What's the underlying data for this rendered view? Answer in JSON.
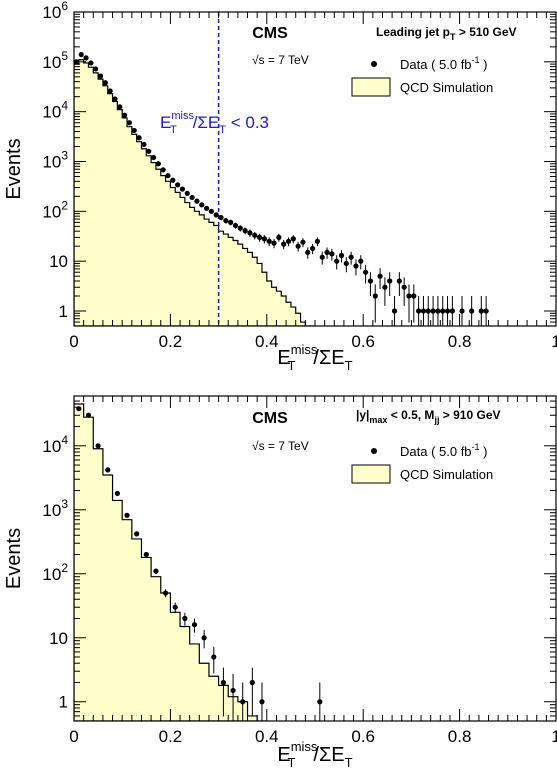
{
  "chart_data": [
    {
      "type": "histogram",
      "panel": "top",
      "experiment": "CMS",
      "energy": {
        "pre": "√s",
        "post": " = 7 TeV"
      },
      "selection": {
        "parts": [
          "Leading jet p",
          "T",
          " > 510 GeV"
        ]
      },
      "xlabel": {
        "E": "E",
        "T": "T",
        "miss": "miss",
        "slash": "/ΣE",
        "T2": "T"
      },
      "ylabel": "Events",
      "xlim": [
        0,
        1
      ],
      "ylim": [
        0.5,
        1000000
      ],
      "ylog": true,
      "xticks": [
        "0",
        "0.2",
        "0.4",
        "0.6",
        "0.8",
        "1"
      ],
      "yticks": [
        {
          "value": 1,
          "label": "1",
          "exp": ""
        },
        {
          "value": 10,
          "label": "10",
          "exp": ""
        },
        {
          "value": 100,
          "label": "10",
          "exp": "2"
        },
        {
          "value": 1000,
          "label": "10",
          "exp": "3"
        },
        {
          "value": 10000,
          "label": "10",
          "exp": "4"
        },
        {
          "value": 100000,
          "label": "10",
          "exp": "5"
        },
        {
          "value": 1000000,
          "label": "10",
          "exp": "6"
        }
      ],
      "cut": {
        "x": 0.3,
        "label": {
          "E": "E",
          "T": "T",
          "miss": "miss",
          "rest": "/ΣE",
          "T2": "T",
          "cond": " < 0.3"
        }
      },
      "legend": {
        "data": {
          "pre": "Data ( 5.0 fb",
          "sup": "-1",
          "post": " )"
        },
        "mc": "QCD Simulation"
      },
      "colors": {
        "mc_fill": "#ffffcc",
        "cut": "#1a1acc",
        "points": "#000000"
      },
      "series": [
        {
          "name": "QCD Simulation",
          "bin_width": 0.01,
          "x_start": 0.0,
          "values": [
            90000,
            110000,
            95000,
            78000,
            60000,
            45000,
            33000,
            23000,
            16000,
            11000,
            7500,
            5000,
            3500,
            2500,
            1800,
            1300,
            950,
            700,
            520,
            400,
            300,
            240,
            190,
            150,
            120,
            100,
            85,
            70,
            60,
            52,
            40,
            35,
            30,
            26,
            22,
            18,
            15,
            12,
            9,
            6,
            4,
            3,
            2.5,
            2,
            1.5,
            1.2,
            0.9,
            0.6,
            0.5,
            0.5
          ]
        },
        {
          "name": "Data",
          "x": [
            0.005,
            0.015,
            0.025,
            0.035,
            0.045,
            0.055,
            0.065,
            0.075,
            0.085,
            0.095,
            0.105,
            0.115,
            0.125,
            0.135,
            0.145,
            0.155,
            0.165,
            0.175,
            0.185,
            0.195,
            0.205,
            0.215,
            0.225,
            0.235,
            0.245,
            0.255,
            0.265,
            0.275,
            0.285,
            0.295,
            0.305,
            0.315,
            0.325,
            0.335,
            0.345,
            0.355,
            0.365,
            0.375,
            0.385,
            0.395,
            0.405,
            0.415,
            0.425,
            0.435,
            0.445,
            0.455,
            0.465,
            0.475,
            0.485,
            0.495,
            0.505,
            0.515,
            0.525,
            0.535,
            0.545,
            0.555,
            0.565,
            0.575,
            0.585,
            0.595,
            0.605,
            0.615,
            0.625,
            0.635,
            0.645,
            0.655,
            0.665,
            0.675,
            0.685,
            0.695,
            0.705,
            0.715,
            0.725,
            0.735,
            0.745,
            0.755,
            0.765,
            0.775,
            0.785,
            0.805,
            0.825,
            0.845,
            0.855
          ],
          "values": [
            100000,
            140000,
            120000,
            95000,
            72000,
            52000,
            38000,
            26000,
            18000,
            12500,
            8500,
            6000,
            4200,
            3000,
            2200,
            1600,
            1200,
            900,
            680,
            520,
            420,
            340,
            280,
            230,
            190,
            160,
            135,
            115,
            100,
            85,
            75,
            65,
            60,
            52,
            46,
            41,
            37,
            33,
            30,
            28,
            25,
            23,
            30,
            22,
            25,
            28,
            20,
            24,
            15,
            18,
            25,
            12,
            15,
            14,
            10,
            13,
            9,
            12,
            8,
            10,
            6,
            4,
            2,
            5,
            3,
            4,
            1,
            4,
            3,
            2,
            2,
            1,
            1,
            1,
            1,
            1,
            1,
            1,
            1,
            1,
            1,
            1,
            1
          ]
        }
      ]
    },
    {
      "type": "histogram",
      "panel": "bottom",
      "experiment": "CMS",
      "energy": {
        "pre": "√s",
        "post": " = 7 TeV"
      },
      "selection": {
        "parts": [
          "|y|",
          "max",
          " < 0.5, M",
          "jj",
          " > 910 GeV"
        ]
      },
      "xlabel": {
        "E": "E",
        "T": "T",
        "miss": "miss",
        "slash": "/ΣE",
        "T2": "T"
      },
      "ylabel": "Events",
      "xlim": [
        0,
        1
      ],
      "ylim": [
        0.5,
        60000
      ],
      "ylog": true,
      "xticks": [
        "0",
        "0.2",
        "0.4",
        "0.6",
        "0.8",
        "1"
      ],
      "yticks": [
        {
          "value": 1,
          "label": "1",
          "exp": ""
        },
        {
          "value": 10,
          "label": "10",
          "exp": ""
        },
        {
          "value": 100,
          "label": "10",
          "exp": "2"
        },
        {
          "value": 1000,
          "label": "10",
          "exp": "3"
        },
        {
          "value": 10000,
          "label": "10",
          "exp": "4"
        }
      ],
      "legend": {
        "data": {
          "pre": "Data ( 5.0 fb",
          "sup": "-1",
          "post": " )"
        },
        "mc": "QCD Simulation"
      },
      "colors": {
        "mc_fill": "#ffffcc",
        "points": "#000000"
      },
      "series": [
        {
          "name": "QCD Simulation",
          "bin_width": 0.02,
          "x_start": 0.0,
          "values": [
            45000,
            28000,
            9000,
            3500,
            1400,
            700,
            350,
            180,
            90,
            50,
            25,
            15,
            8,
            4,
            2.5,
            1.8,
            1.2,
            1.0,
            0.6,
            0.5
          ]
        },
        {
          "name": "Data",
          "x": [
            0.01,
            0.03,
            0.05,
            0.07,
            0.09,
            0.11,
            0.13,
            0.15,
            0.17,
            0.19,
            0.21,
            0.23,
            0.25,
            0.27,
            0.29,
            0.31,
            0.33,
            0.35,
            0.37,
            0.39,
            0.51
          ],
          "values": [
            38000,
            30000,
            10000,
            4200,
            1800,
            820,
            420,
            200,
            110,
            50,
            30,
            20,
            16,
            10,
            5,
            2,
            1.5,
            1,
            2,
            1,
            1
          ]
        }
      ]
    }
  ]
}
